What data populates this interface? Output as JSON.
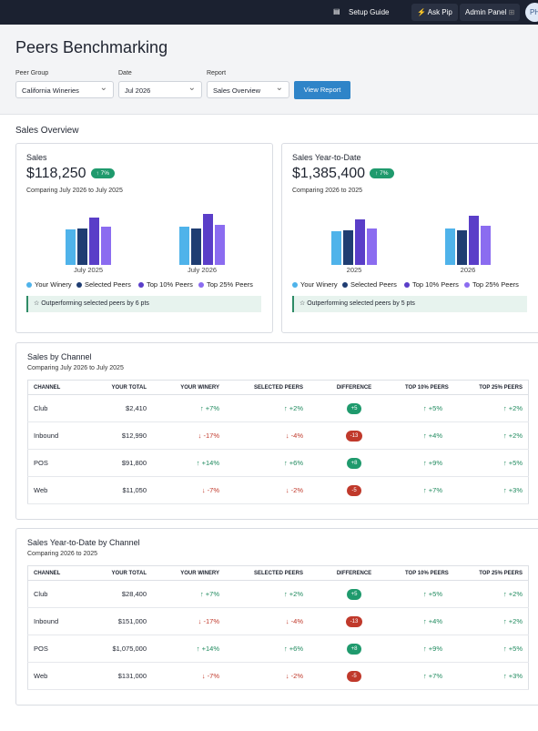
{
  "topbar": {
    "setup": "Setup Guide",
    "pip": "Ask Pip",
    "admin": "Admin Panel",
    "avatar": "PH"
  },
  "header": {
    "title": "Peers Benchmarking"
  },
  "filters": [
    {
      "label": "Peer Group",
      "value": "California Wineries"
    },
    {
      "label": "Date",
      "value": "Jul 2026"
    },
    {
      "label": "Report",
      "value": "Sales Overview"
    }
  ],
  "button": "View Report",
  "section_title": "Sales Overview",
  "cards": [
    {
      "title": "Sales",
      "value": "$118,250",
      "change": "↑ 7%",
      "comparison": "Comparing July 2026 to July 2025",
      "note": "☆ Outperforming selected peers by 6 pts",
      "chart": {
        "type": "bar",
        "categories": [
          "July 2025",
          "July 2026"
        ],
        "series": [
          {
            "name": "Your Winery",
            "color": "#4fb3ea",
            "values": [
              39,
              42
            ]
          },
          {
            "name": "Selected Peers",
            "color": "#1f3d72",
            "values": [
              40,
              40
            ]
          },
          {
            "name": "Top 10% Peers",
            "color": "#5a3ec8",
            "values": [
              52,
              56
            ]
          },
          {
            "name": "Top 25% Peers",
            "color": "#8b6cf0",
            "values": [
              42,
              44
            ]
          }
        ]
      }
    },
    {
      "title": "Sales Year-to-Date",
      "value": "$1,385,400",
      "change": "↑ 7%",
      "comparison": "Comparing 2026 to 2025",
      "note": "☆ Outperforming selected peers by 5 pts",
      "chart": {
        "type": "bar",
        "categories": [
          "2025",
          "2026"
        ],
        "series": [
          {
            "name": "Your Winery",
            "color": "#4fb3ea",
            "values": [
              37,
              40
            ]
          },
          {
            "name": "Selected Peers",
            "color": "#1f3d72",
            "values": [
              38,
              38
            ]
          },
          {
            "name": "Top 10% Peers",
            "color": "#5a3ec8",
            "values": [
              50,
              54
            ]
          },
          {
            "name": "Top 25% Peers",
            "color": "#8b6cf0",
            "values": [
              40,
              43
            ]
          }
        ]
      }
    }
  ],
  "tables": [
    {
      "title": "Sales by Channel",
      "comparison": "Comparing July 2026 to July 2025",
      "columns": [
        "CHANNEL",
        "YOUR TOTAL",
        "YOUR WINERY",
        "SELECTED PEERS",
        "DIFFERENCE",
        "TOP 10% PEERS",
        "TOP 25% PEERS"
      ],
      "rows": [
        [
          "Club",
          "$2,410",
          "↑ +7%",
          "↑ +2%",
          "+5",
          "↑ +5%",
          "↑ +2%"
        ],
        [
          "Inbound",
          "$12,990",
          "↓ -17%",
          "↓ -4%",
          "-13",
          "↑ +4%",
          "↑ +2%"
        ],
        [
          "POS",
          "$91,800",
          "↑ +14%",
          "↑ +6%",
          "+8",
          "↑ +9%",
          "↑ +5%"
        ],
        [
          "Web",
          "$11,050",
          "↓ -7%",
          "↓ -2%",
          "-5",
          "↑ +7%",
          "↑ +3%"
        ]
      ]
    },
    {
      "title": "Sales Year-to-Date by Channel",
      "comparison": "Comparing 2026 to 2025",
      "columns": [
        "CHANNEL",
        "YOUR TOTAL",
        "YOUR WINERY",
        "SELECTED PEERS",
        "DIFFERENCE",
        "TOP 10% PEERS",
        "TOP 25% PEERS"
      ],
      "rows": [
        [
          "Club",
          "$28,400",
          "↑ +7%",
          "↑ +2%",
          "+5",
          "↑ +5%",
          "↑ +2%"
        ],
        [
          "Inbound",
          "$151,000",
          "↓ -17%",
          "↓ -4%",
          "-13",
          "↑ +4%",
          "↑ +2%"
        ],
        [
          "POS",
          "$1,075,000",
          "↑ +14%",
          "↑ +6%",
          "+8",
          "↑ +9%",
          "↑ +5%"
        ],
        [
          "Web",
          "$131,000",
          "↓ -7%",
          "↓ -2%",
          "-5",
          "↑ +7%",
          "↑ +3%"
        ]
      ]
    }
  ]
}
